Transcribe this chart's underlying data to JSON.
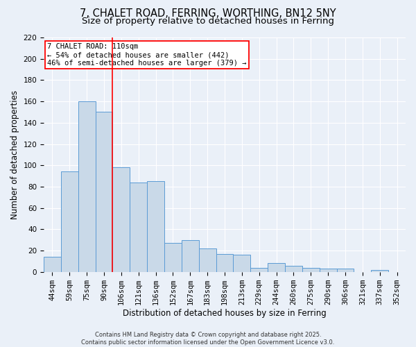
{
  "title1": "7, CHALET ROAD, FERRING, WORTHING, BN12 5NY",
  "title2": "Size of property relative to detached houses in Ferring",
  "xlabel": "Distribution of detached houses by size in Ferring",
  "ylabel": "Number of detached properties",
  "categories": [
    "44sqm",
    "59sqm",
    "75sqm",
    "90sqm",
    "106sqm",
    "121sqm",
    "136sqm",
    "152sqm",
    "167sqm",
    "183sqm",
    "198sqm",
    "213sqm",
    "229sqm",
    "244sqm",
    "260sqm",
    "275sqm",
    "290sqm",
    "306sqm",
    "321sqm",
    "337sqm",
    "352sqm"
  ],
  "values": [
    14,
    94,
    160,
    150,
    98,
    84,
    85,
    27,
    30,
    22,
    17,
    16,
    4,
    8,
    6,
    4,
    3,
    3,
    0,
    2,
    0
  ],
  "bar_color": "#c9d9e8",
  "bar_edge_color": "#5b9bd5",
  "background_color": "#eaf0f8",
  "grid_color": "#ffffff",
  "red_line_index": 4,
  "annotation_line1": "7 CHALET ROAD: 110sqm",
  "annotation_line2": "← 54% of detached houses are smaller (442)",
  "annotation_line3": "46% of semi-detached houses are larger (379) →",
  "annotation_box_color": "white",
  "annotation_box_edge_color": "red",
  "ylim": [
    0,
    220
  ],
  "yticks": [
    0,
    20,
    40,
    60,
    80,
    100,
    120,
    140,
    160,
    180,
    200,
    220
  ],
  "footer_line1": "Contains HM Land Registry data © Crown copyright and database right 2025.",
  "footer_line2": "Contains public sector information licensed under the Open Government Licence v3.0.",
  "title_fontsize": 10.5,
  "subtitle_fontsize": 9.5,
  "xlabel_fontsize": 8.5,
  "ylabel_fontsize": 8.5,
  "tick_fontsize": 7.5,
  "annotation_fontsize": 7.5,
  "footer_fontsize": 6.0
}
